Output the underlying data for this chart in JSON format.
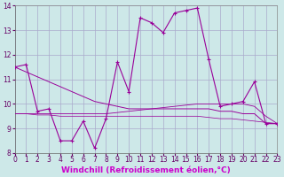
{
  "background_color": "#cde8e8",
  "grid_color": "#aaaacc",
  "line_color": "#990099",
  "marker": "+",
  "markersize": 3,
  "linewidth": 0.8,
  "series1_x": [
    0,
    1,
    2,
    3,
    4,
    5,
    6,
    7,
    8,
    9,
    10,
    11,
    12,
    13,
    14,
    15,
    16,
    17,
    18,
    19,
    20,
    21,
    22,
    23
  ],
  "series1_y": [
    11.5,
    11.6,
    9.7,
    9.8,
    8.5,
    8.5,
    9.3,
    8.2,
    9.4,
    11.7,
    10.5,
    13.5,
    13.3,
    12.9,
    13.7,
    13.8,
    13.9,
    11.8,
    9.9,
    10.0,
    10.1,
    10.9,
    9.2,
    9.2
  ],
  "series2_x": [
    0,
    1,
    2,
    3,
    4,
    5,
    6,
    7,
    8,
    9,
    10,
    11,
    12,
    13,
    14,
    15,
    16,
    17,
    18,
    19,
    20,
    21,
    22,
    23
  ],
  "series2_y": [
    11.5,
    11.3,
    11.1,
    10.9,
    10.7,
    10.5,
    10.3,
    10.1,
    10.0,
    9.9,
    9.8,
    9.8,
    9.8,
    9.8,
    9.8,
    9.8,
    9.8,
    9.8,
    9.7,
    9.7,
    9.6,
    9.6,
    9.2,
    9.2
  ],
  "series3_x": [
    0,
    1,
    2,
    3,
    4,
    5,
    6,
    7,
    8,
    9,
    10,
    11,
    12,
    13,
    14,
    15,
    16,
    17,
    18,
    19,
    20,
    21,
    22,
    23
  ],
  "series3_y": [
    9.6,
    9.6,
    9.6,
    9.6,
    9.6,
    9.6,
    9.6,
    9.6,
    9.6,
    9.65,
    9.7,
    9.75,
    9.8,
    9.85,
    9.9,
    9.95,
    10.0,
    10.0,
    10.0,
    10.0,
    10.0,
    9.9,
    9.5,
    9.2
  ],
  "series4_x": [
    0,
    1,
    2,
    3,
    4,
    5,
    6,
    7,
    8,
    9,
    10,
    11,
    12,
    13,
    14,
    15,
    16,
    17,
    18,
    19,
    20,
    21,
    22,
    23
  ],
  "series4_y": [
    9.6,
    9.6,
    9.55,
    9.55,
    9.5,
    9.5,
    9.5,
    9.5,
    9.5,
    9.5,
    9.5,
    9.5,
    9.5,
    9.5,
    9.5,
    9.5,
    9.5,
    9.45,
    9.4,
    9.4,
    9.35,
    9.3,
    9.25,
    9.2
  ],
  "xlim": [
    0,
    23
  ],
  "ylim": [
    8,
    14
  ],
  "xticks": [
    0,
    1,
    2,
    3,
    4,
    5,
    6,
    7,
    8,
    9,
    10,
    11,
    12,
    13,
    14,
    15,
    16,
    17,
    18,
    19,
    20,
    21,
    22,
    23
  ],
  "yticks": [
    8,
    9,
    10,
    11,
    12,
    13,
    14
  ],
  "xlabel": "Windchill (Refroidissement éolien,°C)",
  "xlabel_color": "#cc00cc",
  "tick_color": "#660066",
  "tick_fontsize": 5.5,
  "xlabel_fontsize": 6.5
}
